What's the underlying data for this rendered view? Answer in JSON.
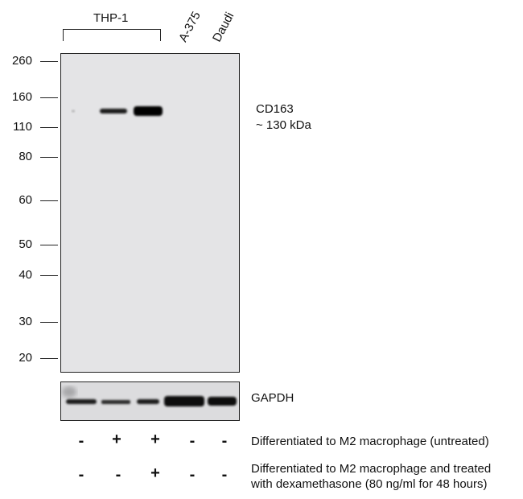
{
  "header": {
    "cell_line_group": "THP-1",
    "lane_labels": [
      "A-375",
      "Daudi"
    ]
  },
  "markers": [
    "260",
    "160",
    "110",
    "80",
    "60",
    "50",
    "40",
    "30",
    "20"
  ],
  "target": {
    "name": "CD163",
    "size": "~ 130 kDa"
  },
  "loading_control": "GAPDH",
  "conditions": [
    {
      "label": "Differentiated to M2 macrophage (untreated)",
      "signs": [
        "-",
        "+",
        "+",
        "-",
        "-"
      ]
    },
    {
      "label_line1": "Differentiated to M2 macrophage and treated",
      "label_line2": "with dexamethasone (80 ng/ml for 48 hours)",
      "signs": [
        "-",
        "-",
        "+",
        "-",
        "-"
      ]
    }
  ]
}
